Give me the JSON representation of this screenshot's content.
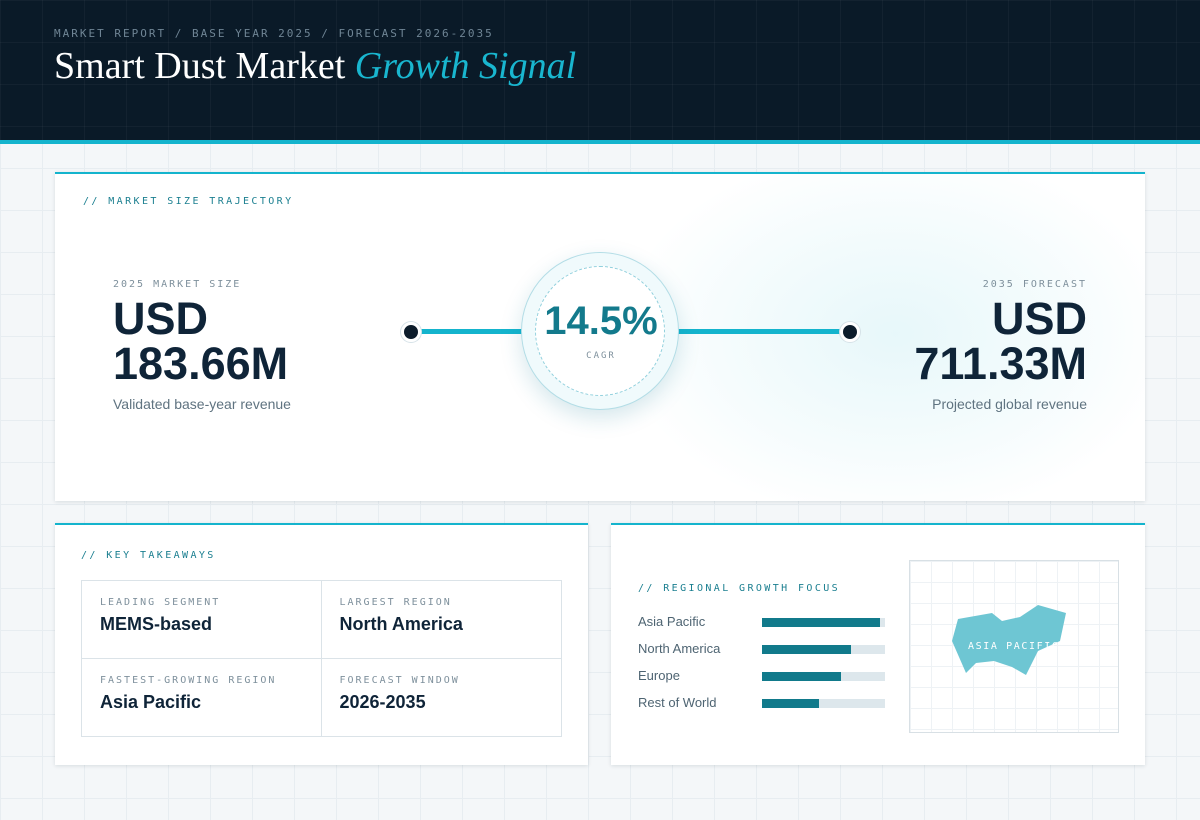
{
  "header": {
    "breadcrumb": "MARKET REPORT / BASE YEAR 2025 / FORECAST 2026-2035",
    "title_main": "Smart Dust Market",
    "title_accent": "Growth Signal"
  },
  "trajectory": {
    "label": "// MARKET SIZE TRAJECTORY",
    "start": {
      "caption": "2025 MARKET SIZE",
      "currency": "USD",
      "amount": "183.66M",
      "note": "Validated base-year revenue"
    },
    "end": {
      "caption": "2035 FORECAST",
      "currency": "USD",
      "amount": "711.33M",
      "note": "Projected global revenue"
    },
    "cagr": {
      "value": "14.5%",
      "label": "CAGR"
    }
  },
  "takeaways": {
    "label": "// KEY TAKEAWAYS",
    "items": [
      {
        "key": "LEADING SEGMENT",
        "value": "MEMS-based"
      },
      {
        "key": "LARGEST REGION",
        "value": "North America"
      },
      {
        "key": "FASTEST-GROWING REGION",
        "value": "Asia Pacific"
      },
      {
        "key": "FORECAST WINDOW",
        "value": "2026-2035"
      }
    ]
  },
  "regional": {
    "label": "// REGIONAL GROWTH FOCUS",
    "regions": [
      {
        "name": "Asia Pacific",
        "share": 0.96
      },
      {
        "name": "North America",
        "share": 0.72
      },
      {
        "name": "Europe",
        "share": 0.64
      },
      {
        "name": "Rest of World",
        "share": 0.46
      }
    ],
    "map_label": "ASIA PACIFIC"
  },
  "colors": {
    "accent": "#14b4cd",
    "accent_dark": "#117a8b",
    "header_bg": "#0a1a28",
    "text_dark": "#0f2438"
  }
}
